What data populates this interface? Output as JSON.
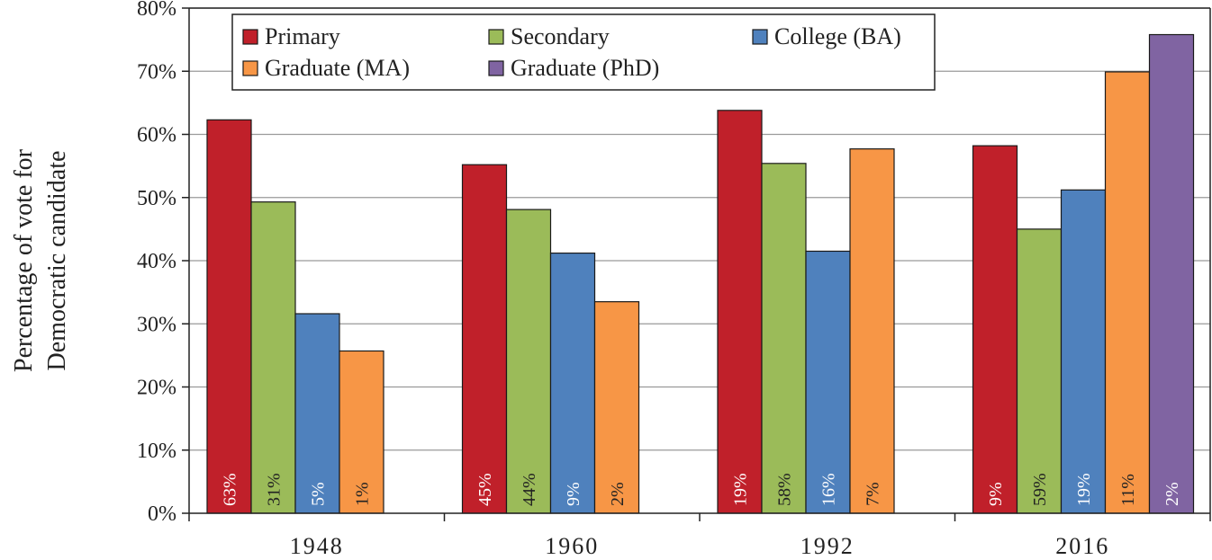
{
  "chart_data": {
    "type": "bar",
    "categories": [
      "1948",
      "1960",
      "1992",
      "2016"
    ],
    "ylabel_lines": [
      "Percentage of vote for",
      "Democratic candidate"
    ],
    "ylim": [
      0,
      80
    ],
    "yticks": [
      "0%",
      "10%",
      "20%",
      "30%",
      "40%",
      "50%",
      "60%",
      "70%",
      "80%"
    ],
    "grid": true,
    "legend_position": "top",
    "series": [
      {
        "name": "Primary",
        "color": "#c0202a",
        "label_color": "#ffffff",
        "values": [
          62.3,
          55.2,
          63.8,
          58.2
        ],
        "labels": [
          "63%",
          "45%",
          "19%",
          "9%"
        ]
      },
      {
        "name": "Secondary",
        "color": "#9bbb59",
        "label_color": "#222222",
        "values": [
          49.3,
          48.1,
          55.4,
          45.0
        ],
        "labels": [
          "31%",
          "44%",
          "58%",
          "59%"
        ]
      },
      {
        "name": "College (BA)",
        "color": "#4f81bd",
        "label_color": "#ffffff",
        "values": [
          31.6,
          41.2,
          41.5,
          51.2
        ],
        "labels": [
          "5%",
          "9%",
          "16%",
          "19%"
        ]
      },
      {
        "name": "Graduate (MA)",
        "color": "#f79646",
        "label_color": "#222222",
        "values": [
          25.7,
          33.5,
          57.7,
          69.9
        ],
        "labels": [
          "1%",
          "2%",
          "7%",
          "11%"
        ]
      },
      {
        "name": "Graduate (PhD)",
        "color": "#8064a2",
        "label_color": "#ffffff",
        "values": [
          null,
          null,
          null,
          75.8
        ],
        "labels": [
          "",
          "",
          "",
          "2%"
        ]
      }
    ]
  }
}
